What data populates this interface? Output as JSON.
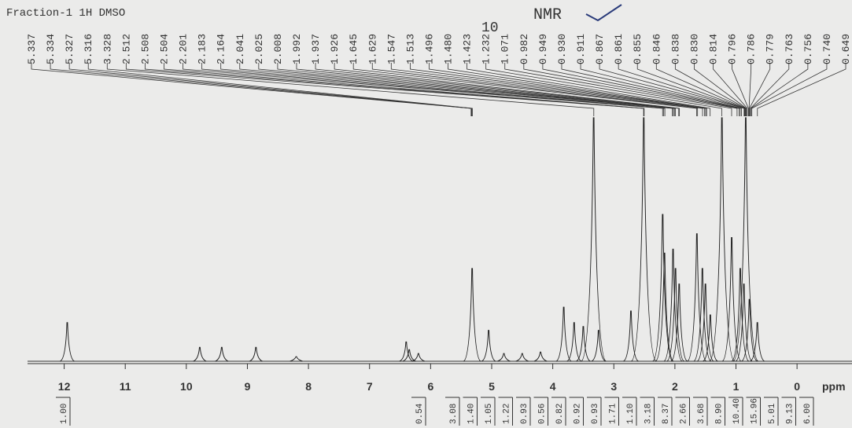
{
  "chart_data": {
    "type": "nmr",
    "title": "Fraction-1 1H DMSO",
    "annotations": [
      "10",
      "NMR"
    ],
    "x_label": "ppm",
    "xlim": [
      12.6,
      -0.9
    ],
    "xticks": [
      12,
      11,
      10,
      9,
      8,
      7,
      6,
      5,
      4,
      3,
      2,
      1,
      0
    ],
    "ylim": [
      0,
      320
    ],
    "color": "#222222",
    "peaks": {
      "x": [
        11.95,
        9.78,
        9.42,
        8.86,
        8.2,
        6.4,
        6.35,
        6.2,
        5.32,
        5.05,
        4.8,
        4.5,
        4.2,
        3.82,
        3.65,
        3.5,
        3.33,
        3.25,
        2.72,
        2.51,
        2.2,
        2.17,
        2.03,
        1.99,
        1.93,
        1.64,
        1.55,
        1.5,
        1.42,
        1.23,
        1.07,
        0.93,
        0.87,
        0.84,
        0.78,
        0.65
      ],
      "values": [
        50,
        18,
        18,
        18,
        6,
        25,
        15,
        10,
        120,
        40,
        10,
        10,
        12,
        70,
        50,
        45,
        315,
        40,
        65,
        315,
        190,
        140,
        145,
        120,
        100,
        165,
        120,
        100,
        60,
        315,
        160,
        120,
        100,
        315,
        80,
        50
      ]
    },
    "peak_labels": [
      5.337,
      5.334,
      5.327,
      5.316,
      3.328,
      2.512,
      2.508,
      2.504,
      2.201,
      2.183,
      2.164,
      2.041,
      2.025,
      2.008,
      1.992,
      1.937,
      1.926,
      1.645,
      1.629,
      1.547,
      1.513,
      1.496,
      {
        "value": 1.48,
        "label": "1.480"
      },
      1.423,
      1.232,
      1.071,
      0.982,
      0.949,
      {
        "value": 0.93,
        "label": "0.930"
      },
      0.911,
      0.867,
      0.861,
      0.855,
      0.846,
      0.838,
      {
        "value": 0.83,
        "label": "0.830"
      },
      0.814,
      0.796,
      0.786,
      0.779,
      0.763,
      0.756,
      {
        "value": 0.74,
        "label": "0.740"
      },
      0.649
    ],
    "integrals": [
      {
        "value": 1,
        "label": "1.00"
      },
      0.54,
      3.08,
      {
        "value": 1.4,
        "label": "1.40"
      },
      1.05,
      1.22,
      0.93,
      0.56,
      0.82,
      0.92,
      0.93,
      1.71,
      {
        "value": 1.1,
        "label": "1.10"
      },
      3.18,
      8.37,
      2.66,
      3.68,
      {
        "value": 8.9,
        "label": "8.90"
      },
      {
        "value": 10.4,
        "label": "10.40"
      },
      15.96,
      5.01,
      9.13,
      {
        "value": 6,
        "label": "6.00"
      }
    ]
  }
}
